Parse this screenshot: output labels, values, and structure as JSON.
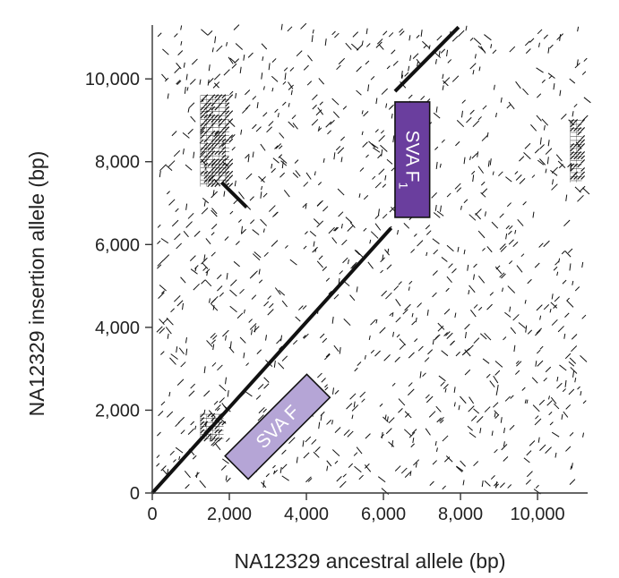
{
  "chart_data": {
    "type": "scatter",
    "xlabel": "NA12329 ancestral allele (bp)",
    "ylabel": "NA12329 insertion allele (bp)",
    "xlim": [
      0,
      11300
    ],
    "ylim": [
      0,
      11300
    ],
    "xticks": [
      0,
      2000,
      4000,
      6000,
      8000,
      10000
    ],
    "yticks": [
      0,
      2000,
      4000,
      6000,
      8000,
      10000
    ],
    "xtick_labels": [
      "0",
      "2,000",
      "4,000",
      "6,000",
      "8,000",
      "10,000"
    ],
    "ytick_labels": [
      "0",
      "2,000",
      "4,000",
      "6,000",
      "8,000",
      "10,000"
    ],
    "grid": false,
    "main_alignments": [
      {
        "x0": 0,
        "y0": 0,
        "x1": 6200,
        "y1": 6400
      },
      {
        "x0": 6300,
        "y0": 9700,
        "x1": 7950,
        "y1": 11250
      },
      {
        "x0": 1800,
        "y0": 7500,
        "x1": 2450,
        "y1": 6900
      }
    ],
    "repeat_blocks": [
      {
        "x0": 1250,
        "x1": 2000,
        "y0": 7400,
        "y1": 9600
      },
      {
        "x0": 1250,
        "x1": 1850,
        "y0": 1300,
        "y1": 1900
      },
      {
        "x0": 10850,
        "x1": 11150,
        "y0": 7500,
        "y1": 9000
      }
    ],
    "annotations": [
      {
        "label": "SVA F",
        "subscript": "",
        "color": "#b5a5d6",
        "center": [
          3250,
          1600
        ],
        "length": 3000,
        "thickness": 850,
        "angle_deg": -45
      },
      {
        "label": "SVA F",
        "subscript": "1",
        "color": "#6a3e9e",
        "center": [
          6750,
          8050
        ],
        "length": 3000,
        "thickness": 900,
        "angle_deg": 90
      }
    ],
    "colors": {
      "dots": "#111111",
      "axis": "#333333"
    }
  }
}
